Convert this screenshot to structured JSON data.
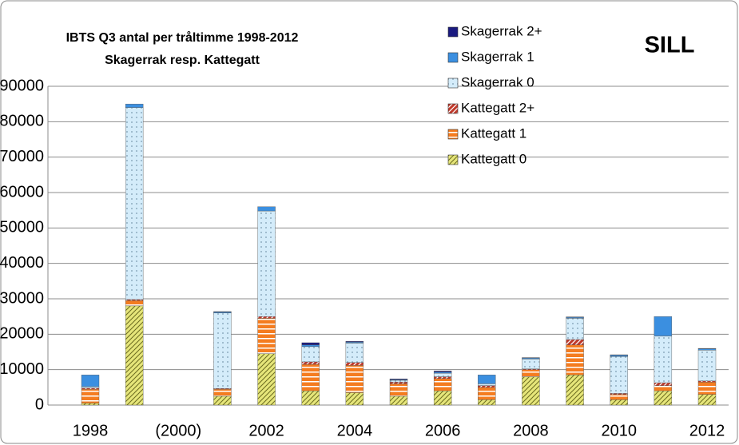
{
  "chart_data": {
    "type": "stacked_bar",
    "title": "IBTS Q3 antal per tråltimme 1998-2012",
    "subtitle": "Skagerrak resp. Kattegatt",
    "annotation": "SILL",
    "categories": [
      "1998",
      null,
      "(2000)",
      null,
      "2002",
      null,
      "2004",
      null,
      "2006",
      null,
      "2008",
      null,
      "2010",
      null,
      "2012"
    ],
    "series": [
      {
        "name": "Kattegatt 0",
        "color": "#e6e67a",
        "values": [
          500,
          28000,
          null,
          2500,
          14500,
          4000,
          3500,
          2500,
          4000,
          1500,
          8000,
          8500,
          1500,
          4000,
          3000
        ]
      },
      {
        "name": "Kattegatt 1",
        "color": "#f47c20",
        "values": [
          4000,
          1500,
          null,
          2000,
          10000,
          7500,
          7700,
          3500,
          3500,
          3500,
          2000,
          8500,
          1500,
          1500,
          3500
        ]
      },
      {
        "name": "Kattegatt 2+",
        "color": "#c0392b",
        "values": [
          300,
          300,
          null,
          200,
          500,
          700,
          800,
          500,
          500,
          500,
          200,
          1500,
          300,
          800,
          300
        ]
      },
      {
        "name": "Skagerrak 0",
        "color": "#d4ecfa",
        "values": [
          400,
          54200,
          null,
          21300,
          29800,
          4300,
          5500,
          500,
          1000,
          500,
          2800,
          6000,
          10400,
          13200,
          8700
        ]
      },
      {
        "name": "Skagerrak 1",
        "color": "#3b8fe0",
        "values": [
          3300,
          1000,
          null,
          300,
          1200,
          500,
          300,
          200,
          300,
          2500,
          300,
          300,
          400,
          5500,
          400
        ]
      },
      {
        "name": "Skagerrak 2+",
        "color": "#1a1a80",
        "values": [
          0,
          0,
          null,
          100,
          0,
          600,
          200,
          200,
          300,
          0,
          100,
          100,
          100,
          0,
          100
        ]
      }
    ],
    "ylim": [
      0,
      90000
    ],
    "yticks": [
      0,
      10000,
      20000,
      30000,
      40000,
      50000,
      60000,
      70000,
      80000,
      90000
    ],
    "grid": true
  }
}
